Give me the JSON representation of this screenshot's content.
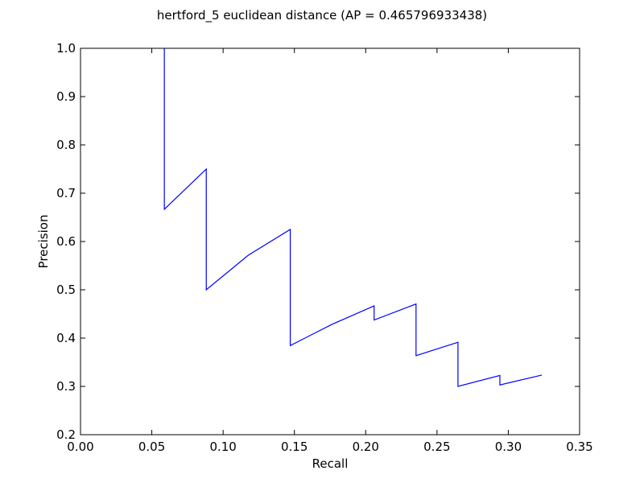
{
  "chart_data": {
    "type": "line",
    "title": "hertford_5 euclidean distance  (AP = 0.465796933438)",
    "xlabel": "Recall",
    "ylabel": "Precision",
    "xlim": [
      0.0,
      0.35
    ],
    "ylim": [
      0.2,
      1.0
    ],
    "xticks": [
      "0.00",
      "0.05",
      "0.10",
      "0.15",
      "0.20",
      "0.25",
      "0.30",
      "0.35"
    ],
    "yticks": [
      "0.2",
      "0.3",
      "0.4",
      "0.5",
      "0.6",
      "0.7",
      "0.8",
      "0.9",
      "1.0"
    ],
    "grid": false,
    "series": [
      {
        "color": "#0000ff",
        "x": [
          0.0588,
          0.0588,
          0.0882,
          0.0882,
          0.1176,
          0.1471,
          0.1471,
          0.1765,
          0.2059,
          0.2059,
          0.2353,
          0.2353,
          0.2647,
          0.2647,
          0.2941,
          0.2941,
          0.3235
        ],
        "y": [
          1.0,
          0.6667,
          0.75,
          0.5,
          0.5714,
          0.625,
          0.3846,
          0.4286,
          0.4667,
          0.4375,
          0.4706,
          0.3636,
          0.3913,
          0.3,
          0.3226,
          0.303,
          0.3235
        ]
      }
    ]
  }
}
